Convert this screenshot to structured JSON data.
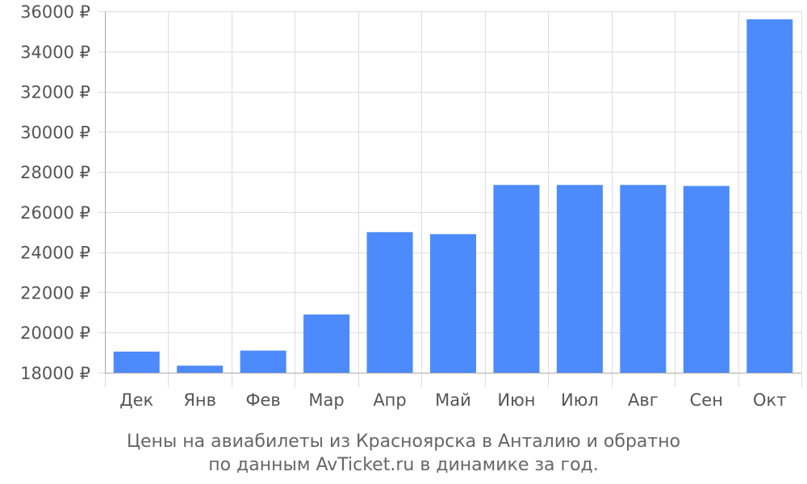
{
  "chart_data": {
    "type": "bar",
    "categories": [
      "Дек",
      "Янв",
      "Фев",
      "Мар",
      "Апр",
      "Май",
      "Июн",
      "Июл",
      "Авг",
      "Сен",
      "Окт"
    ],
    "values": [
      19050,
      18350,
      19100,
      20900,
      25000,
      24900,
      27350,
      27350,
      27350,
      27300,
      35600
    ],
    "ylim": [
      18000,
      36000
    ],
    "yticks": [
      18000,
      20000,
      22000,
      24000,
      26000,
      28000,
      30000,
      32000,
      34000,
      36000
    ],
    "ytick_suffix": " ₽",
    "grid": true,
    "colors": {
      "bar": "#4d8afc",
      "grid": "#dddddd",
      "axis": "#aaaaaa"
    }
  },
  "caption": {
    "line1": "Цены на авиабилеты из Красноярска в Анталию и обратно",
    "line2": "по данным AvTicket.ru в динамике за год."
  }
}
